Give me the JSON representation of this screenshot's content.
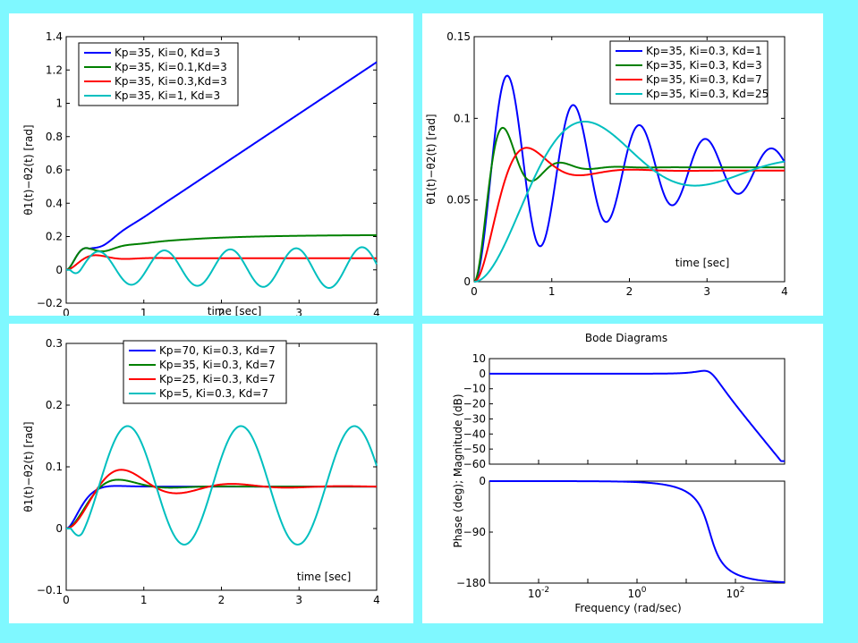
{
  "colors": {
    "background": "#7ff8ff",
    "blue": "#0000ff",
    "green": "#008000",
    "red": "#ff0000",
    "cyan": "#00bfbf"
  },
  "chart_data": [
    {
      "type": "line",
      "title": "",
      "xlabel": "time [sec]",
      "ylabel": "θ1(t)−θ2(t) [rad]",
      "xlim": [
        0,
        4
      ],
      "ylim": [
        -0.2,
        1.4
      ],
      "xticks": [
        "0",
        "1",
        "2",
        "3",
        "4"
      ],
      "yticks": [
        "−0.2",
        "0",
        "0.2",
        "0.4",
        "0.6",
        "0.8",
        "1",
        "1.2",
        "1.4"
      ],
      "legend_position": "top-left",
      "series": [
        {
          "name": "Kp=35, Ki=0,  Kd=3",
          "color": "#0000ff",
          "model": {
            "kind": "ramp",
            "amp": 0.1,
            "wn": 13,
            "z": 0.35,
            "slope": 0.31
          }
        },
        {
          "name": "Kp=35, Ki=0.1,Kd=3",
          "color": "#008000",
          "model": {
            "kind": "int",
            "amp": 0.1,
            "wn": 13,
            "z": 0.35,
            "gain": 0.11,
            "tau": 0.9
          }
        },
        {
          "name": "Kp=35, Ki=0.3,Kd=3",
          "color": "#ff0000",
          "model": {
            "kind": "osc",
            "amp": 0.07,
            "wn": 9,
            "z": 0.4
          }
        },
        {
          "name": "Kp=35, Ki=1,  Kd=3",
          "color": "#00bfbf",
          "model": {
            "kind": "osc_sus",
            "amp": 0.0,
            "ampA": 0.1,
            "w": 7.4,
            "phase": -1.5,
            "growth": 0.08
          }
        }
      ]
    },
    {
      "type": "line",
      "title": "",
      "xlabel": "time [sec]",
      "ylabel": "θ1(t)−θ2(t) [rad]",
      "xlim": [
        0,
        4
      ],
      "ylim": [
        0,
        0.15
      ],
      "xticks": [
        "0",
        "1",
        "2",
        "3",
        "4"
      ],
      "yticks": [
        "0",
        "0.05",
        "0.1",
        "0.15"
      ],
      "legend_position": "top-right",
      "series": [
        {
          "name": "Kp=35, Ki=0.3, Kd=1",
          "color": "#0000ff",
          "model": {
            "kind": "osc",
            "amp": 0.069,
            "wn": 7.4,
            "z": 0.06
          }
        },
        {
          "name": "Kp=35, Ki=0.3, Kd=3",
          "color": "#008000",
          "model": {
            "kind": "osc",
            "amp": 0.07,
            "wn": 9,
            "z": 0.32
          }
        },
        {
          "name": "Kp=35, Ki=0.3, Kd=7",
          "color": "#ff0000",
          "model": {
            "kind": "osc",
            "amp": 0.068,
            "wn": 5.2,
            "z": 0.45
          }
        },
        {
          "name": "Kp=35, Ki=0.3, Kd=25",
          "color": "#00bfbf",
          "model": {
            "kind": "osc",
            "amp": 0.07,
            "wn": 2.3,
            "z": 0.28
          }
        }
      ]
    },
    {
      "type": "line",
      "title": "",
      "xlabel": "time [sec]",
      "ylabel": "θ1(t)−θ2(t) [rad]",
      "xlim": [
        0,
        4
      ],
      "ylim": [
        -0.1,
        0.3
      ],
      "xticks": [
        "0",
        "1",
        "2",
        "3",
        "4"
      ],
      "yticks": [
        "−0.1",
        "0",
        "0.1",
        "0.2",
        "0.3"
      ],
      "legend_position": "top-center",
      "series": [
        {
          "name": "Kp=70, Ki=0.3, Kd=7",
          "color": "#0000ff",
          "model": {
            "kind": "osc",
            "amp": 0.068,
            "wn": 8,
            "z": 0.8
          }
        },
        {
          "name": "Kp=35, Ki=0.3, Kd=7",
          "color": "#008000",
          "model": {
            "kind": "osc",
            "amp": 0.068,
            "wn": 5.4,
            "z": 0.5
          }
        },
        {
          "name": "Kp=25, Ki=0.3, Kd=7",
          "color": "#ff0000",
          "model": {
            "kind": "osc",
            "amp": 0.068,
            "wn": 4.6,
            "z": 0.28
          }
        },
        {
          "name": "Kp=5,   Ki=0.3, Kd=7",
          "color": "#00bfbf",
          "model": {
            "kind": "osc_sus",
            "amp": 0.07,
            "ampA": 0.096,
            "w": 4.3,
            "phase": 0,
            "growth": 0,
            "start": 0.06
          }
        }
      ]
    },
    {
      "type": "line",
      "title": "Bode Diagrams",
      "xlabel": "Frequency (rad/sec)",
      "xscale": "log",
      "xlim_exp": [
        -3,
        3
      ],
      "xticks": [
        "10^-2",
        "10^0",
        "10^2"
      ],
      "magnitude": {
        "ylabel": "Phase (deg); Magnitude (dB)",
        "ylim": [
          -60,
          10
        ],
        "yticks": [
          "10",
          "0",
          "−10",
          "−20",
          "−30",
          "−40",
          "−50",
          "−60"
        ]
      },
      "phase": {
        "ylim": [
          -180,
          0
        ],
        "yticks": [
          "0",
          "−90",
          "−180"
        ]
      },
      "series": [
        {
          "name": "",
          "color": "#0000ff",
          "model": {
            "wn": 30,
            "z": 0.45
          }
        }
      ]
    }
  ]
}
